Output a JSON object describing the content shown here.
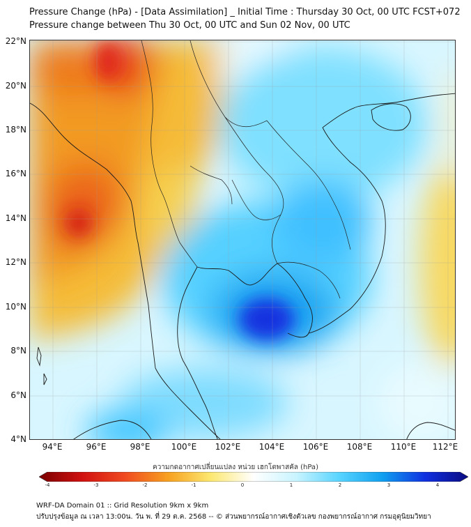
{
  "header": {
    "title_line1": "Pressure Change (hPa) - [Data Assimilation] _ Initial Time : Thursday 30 Oct, 00 UTC FCST+072",
    "title_line2": "Pressure change between Thu 30 Oct, 00 UTC and Sun 02 Nov, 00 UTC"
  },
  "map": {
    "lat_labels": [
      "22°N",
      "20°N",
      "18°N",
      "16°N",
      "14°N",
      "12°N",
      "10°N",
      "8°N",
      "6°N",
      "4°N"
    ],
    "lon_labels": [
      "94°E",
      "96°E",
      "98°E",
      "100°E",
      "102°E",
      "104°E",
      "106°E",
      "108°E",
      "110°E",
      "112°E"
    ],
    "colors": {
      "warm": "#f2c43c",
      "hot": "#e3261e",
      "cool": "#55d6ff",
      "deep": "#1020e0",
      "coast": "#1a1a1a"
    }
  },
  "colorbar": {
    "label": "ความกดอากาศเปลี่ยนแปลง หน่วย เฮกโตพาสคัล (hPa)",
    "ticks": [
      "-4",
      "-3",
      "-2",
      "-1",
      "0",
      "1",
      "2",
      "3",
      "4"
    ],
    "stops": [
      "#7a0000",
      "#d01010",
      "#f04a20",
      "#f7a020",
      "#fce870",
      "#ffffff",
      "#c8f4ff",
      "#58d4ff",
      "#10a0f0",
      "#1030e0",
      "#0a0a80"
    ]
  },
  "footer": {
    "line1": "WRF-DA Domain 01 :: Grid Resolution 9km x 9km",
    "line2": "ปรับปรุงข้อมูล ณ เวลา 13:00น. วัน พ. ที่ 29 ต.ค. 2568 -- © ส่วนพยากรณ์อากาศเชิงตัวเลข กองพยากรณ์อากาศ กรมอุตุนิยมวิทยา"
  }
}
